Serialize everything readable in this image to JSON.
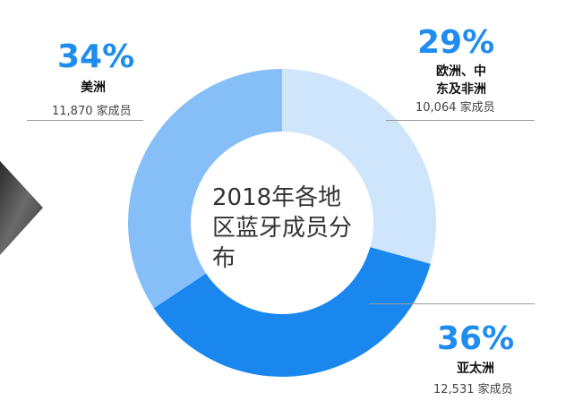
{
  "chart_data": {
    "type": "pie",
    "title": "2018年各地区蓝牙成员分布",
    "slices": [
      {
        "label": "欧洲、中东及非洲",
        "percent": 29,
        "members": "10,064 家成员",
        "color": "#cfe5fb"
      },
      {
        "label": "亚太洲",
        "percent": 36,
        "members": "12,531 家成员",
        "color": "#1a87ef"
      },
      {
        "label": "美洲",
        "percent": 34,
        "members": "11,870 家成员",
        "color": "#86bff8"
      }
    ],
    "percent_labels": [
      "29%",
      "36%",
      "34%"
    ],
    "legend": "none"
  },
  "colors": {
    "accent": "#1f8cf0"
  },
  "region_name_lines": {
    "emea": [
      "欧洲、中",
      "东及非洲"
    ]
  }
}
